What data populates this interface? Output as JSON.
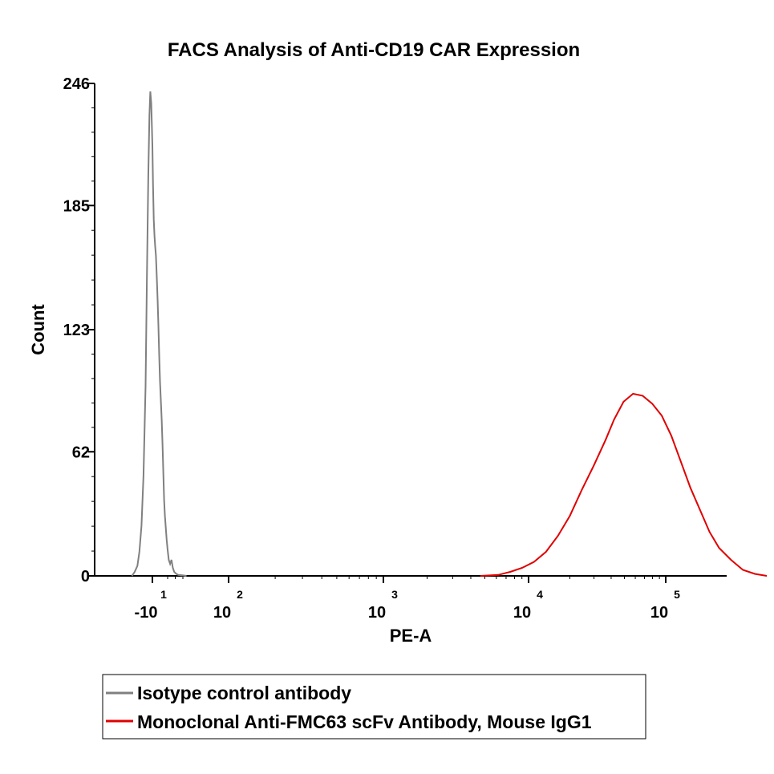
{
  "chart_data": {
    "type": "line",
    "title": "FACS Analysis of Anti-CD19 CAR Expression",
    "xlabel": "PE-A",
    "ylabel": "Count",
    "x_scale": "biexponential (log above 10^1)",
    "ylim": [
      0,
      246
    ],
    "y_ticks": [
      "0",
      "62",
      "123",
      "185",
      "246"
    ],
    "x_ticks": [
      {
        "base": "-10",
        "exp": "1"
      },
      {
        "base": "10",
        "exp": "2"
      },
      {
        "base": "10",
        "exp": "3"
      },
      {
        "base": "10",
        "exp": "4"
      },
      {
        "base": "10",
        "exp": "5"
      }
    ],
    "legend_position": "bottom",
    "series": [
      {
        "name": "Isotype control antibody",
        "color": "#808080",
        "points": [
          [
            -1.5,
            0
          ],
          [
            -1.3,
            2
          ],
          [
            -1.1,
            5
          ],
          [
            -0.95,
            12
          ],
          [
            -0.8,
            25
          ],
          [
            -0.65,
            50
          ],
          [
            -0.5,
            95
          ],
          [
            -0.4,
            150
          ],
          [
            -0.3,
            200
          ],
          [
            -0.22,
            230
          ],
          [
            -0.15,
            242
          ],
          [
            -0.08,
            236
          ],
          [
            0,
            215
          ],
          [
            0.05,
            195
          ],
          [
            0.1,
            178
          ],
          [
            0.15,
            170
          ],
          [
            0.2,
            165
          ],
          [
            0.26,
            160
          ],
          [
            0.32,
            150
          ],
          [
            0.38,
            138
          ],
          [
            0.44,
            125
          ],
          [
            0.5,
            110
          ],
          [
            0.56,
            97
          ],
          [
            0.62,
            88
          ],
          [
            0.68,
            78
          ],
          [
            0.74,
            66
          ],
          [
            0.8,
            52
          ],
          [
            0.86,
            38
          ],
          [
            0.92,
            30
          ],
          [
            0.98,
            24
          ],
          [
            1.05,
            18
          ],
          [
            1.12,
            13
          ],
          [
            1.2,
            8
          ],
          [
            1.3,
            6
          ],
          [
            1.4,
            8
          ],
          [
            1.5,
            4
          ],
          [
            1.6,
            2
          ],
          [
            1.75,
            1
          ],
          [
            1.9,
            0.5
          ],
          [
            2.2,
            0.3
          ],
          [
            2.5,
            0
          ]
        ]
      },
      {
        "name": "Monoclonal Anti-FMC63 scFv Antibody, Mouse IgG1",
        "color": "#e00000",
        "points": [
          [
            3.6,
            0
          ],
          [
            3.75,
            0.5
          ],
          [
            3.85,
            2
          ],
          [
            3.95,
            4
          ],
          [
            4.05,
            7
          ],
          [
            4.15,
            12
          ],
          [
            4.25,
            20
          ],
          [
            4.35,
            30
          ],
          [
            4.45,
            43
          ],
          [
            4.55,
            55
          ],
          [
            4.65,
            68
          ],
          [
            4.72,
            78
          ],
          [
            4.8,
            87
          ],
          [
            4.88,
            91
          ],
          [
            4.96,
            90
          ],
          [
            5.04,
            86
          ],
          [
            5.12,
            80
          ],
          [
            5.2,
            70
          ],
          [
            5.28,
            57
          ],
          [
            5.36,
            44
          ],
          [
            5.44,
            33
          ],
          [
            5.52,
            22
          ],
          [
            5.6,
            14
          ],
          [
            5.7,
            8
          ],
          [
            5.8,
            3
          ],
          [
            5.9,
            1
          ],
          [
            6.0,
            0
          ]
        ]
      }
    ]
  }
}
